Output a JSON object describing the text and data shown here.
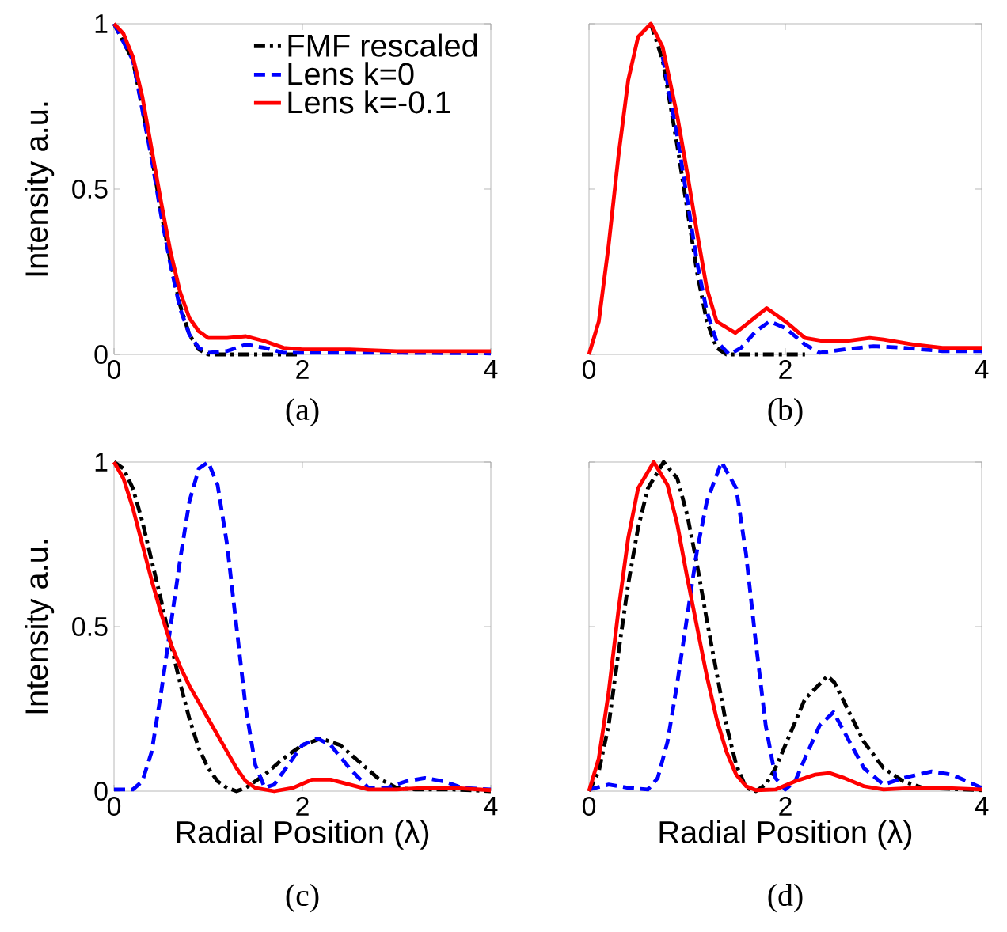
{
  "chart_data": [
    {
      "type": "line",
      "ylabel": "Intensity a.u.",
      "annotations": [
        "(a)"
      ],
      "xlim": [
        0,
        4
      ],
      "ylim": [
        0,
        1
      ],
      "xticks": [
        0,
        2,
        4
      ],
      "yticks": [
        0,
        0.5,
        1
      ],
      "legend": "top right",
      "series": [
        {
          "name": "FMF rescaled",
          "color": "#000000",
          "line_style": "dashdot",
          "x": [
            0,
            0.2,
            0.4,
            0.5,
            0.6,
            0.7,
            0.8,
            0.9,
            1.0,
            1.5,
            2.0
          ],
          "values": [
            1,
            0.89,
            0.6,
            0.43,
            0.28,
            0.15,
            0.06,
            0.015,
            0,
            0,
            0
          ]
        },
        {
          "name": "Lens k=0",
          "color": "#0000ff",
          "line_style": "dashed",
          "x": [
            0,
            0.2,
            0.4,
            0.5,
            0.6,
            0.7,
            0.8,
            0.9,
            1.0,
            1.2,
            1.4,
            1.6,
            1.8,
            2,
            3,
            4
          ],
          "values": [
            1,
            0.89,
            0.59,
            0.42,
            0.27,
            0.14,
            0.06,
            0.02,
            0.005,
            0.01,
            0.03,
            0.02,
            0.005,
            0.005,
            0.005,
            0.003
          ]
        },
        {
          "name": "Lens k=-0.1",
          "color": "#ff0000",
          "line_style": "solid",
          "x": [
            0,
            0.1,
            0.2,
            0.3,
            0.4,
            0.5,
            0.6,
            0.7,
            0.8,
            0.9,
            1.0,
            1.2,
            1.4,
            1.6,
            1.8,
            2.0,
            2.5,
            3,
            3.5,
            4
          ],
          "values": [
            1,
            0.97,
            0.9,
            0.78,
            0.62,
            0.46,
            0.31,
            0.19,
            0.11,
            0.07,
            0.05,
            0.05,
            0.055,
            0.04,
            0.02,
            0.015,
            0.015,
            0.01,
            0.01,
            0.01
          ]
        }
      ]
    },
    {
      "type": "line",
      "annotations": [
        "(b)"
      ],
      "xlim": [
        0,
        4
      ],
      "ylim": [
        0,
        1
      ],
      "xticks": [
        0,
        2,
        4
      ],
      "yticks": [
        0,
        0.5,
        1
      ],
      "tick_labels": "x",
      "series": [
        {
          "color": "#000000",
          "line_style": "dashdot",
          "x": [
            0.63,
            0.75,
            0.9,
            1.0,
            1.1,
            1.2,
            1.3,
            1.4,
            2.2
          ],
          "values": [
            1,
            0.89,
            0.63,
            0.44,
            0.25,
            0.1,
            0.02,
            0,
            0
          ]
        },
        {
          "color": "#0000ff",
          "line_style": "dashed",
          "x": [
            0.75,
            0.9,
            1.0,
            1.1,
            1.2,
            1.3,
            1.43,
            1.55,
            1.7,
            1.84,
            2.0,
            2.2,
            2.35,
            2.6,
            2.9,
            3.2,
            3.6,
            4
          ],
          "values": [
            0.9,
            0.66,
            0.47,
            0.28,
            0.13,
            0.04,
            0,
            0.02,
            0.07,
            0.1,
            0.08,
            0.03,
            0.005,
            0.015,
            0.025,
            0.02,
            0.01,
            0.01
          ]
        },
        {
          "color": "#ff0000",
          "line_style": "solid",
          "x": [
            0,
            0.1,
            0.2,
            0.3,
            0.4,
            0.5,
            0.63,
            0.75,
            0.9,
            1.0,
            1.1,
            1.2,
            1.3,
            1.49,
            1.6,
            1.81,
            2.0,
            2.2,
            2.4,
            2.6,
            2.86,
            3.0,
            3.3,
            3.6,
            4
          ],
          "values": [
            0,
            0.1,
            0.33,
            0.6,
            0.83,
            0.96,
            1,
            0.93,
            0.72,
            0.55,
            0.37,
            0.2,
            0.1,
            0.065,
            0.09,
            0.14,
            0.1,
            0.05,
            0.04,
            0.04,
            0.05,
            0.045,
            0.03,
            0.02,
            0.02
          ]
        }
      ]
    },
    {
      "type": "line",
      "xlabel": "Radial Position (λ)",
      "ylabel": "Intensity a.u.",
      "annotations": [
        "(c)"
      ],
      "xlim": [
        0,
        4
      ],
      "ylim": [
        0,
        1
      ],
      "xticks": [
        0,
        2,
        4
      ],
      "yticks": [
        0,
        0.5,
        1
      ],
      "series": [
        {
          "color": "#000000",
          "line_style": "dashdot",
          "x": [
            0,
            0.1,
            0.2,
            0.3,
            0.4,
            0.5,
            0.6,
            0.7,
            0.8,
            0.9,
            1.0,
            1.1,
            1.2,
            1.3,
            1.4,
            1.5,
            1.6,
            1.8,
            2.0,
            2.2,
            2.4,
            2.6,
            2.8,
            3.0,
            3.2,
            3.6,
            4
          ],
          "values": [
            1,
            0.98,
            0.92,
            0.82,
            0.7,
            0.58,
            0.45,
            0.33,
            0.22,
            0.13,
            0.07,
            0.03,
            0.01,
            0,
            0.01,
            0.03,
            0.05,
            0.1,
            0.14,
            0.16,
            0.14,
            0.09,
            0.04,
            0.01,
            0.005,
            0.005,
            0
          ]
        },
        {
          "color": "#0000ff",
          "line_style": "dashed",
          "x": [
            0,
            0.2,
            0.3,
            0.4,
            0.5,
            0.6,
            0.7,
            0.8,
            0.9,
            1.0,
            1.1,
            1.2,
            1.3,
            1.4,
            1.5,
            1.6,
            1.7,
            1.8,
            2.0,
            2.16,
            2.3,
            2.5,
            2.7,
            2.9,
            3.1,
            3.3,
            3.5,
            3.7,
            4
          ],
          "values": [
            0.005,
            0.005,
            0.03,
            0.12,
            0.3,
            0.5,
            0.7,
            0.88,
            0.98,
            1,
            0.93,
            0.75,
            0.5,
            0.25,
            0.08,
            0.01,
            0.02,
            0.06,
            0.14,
            0.16,
            0.14,
            0.07,
            0.01,
            0.01,
            0.03,
            0.04,
            0.03,
            0.01,
            0.005
          ]
        },
        {
          "color": "#ff0000",
          "line_style": "solid",
          "x": [
            0,
            0.1,
            0.2,
            0.3,
            0.4,
            0.5,
            0.6,
            0.7,
            0.8,
            0.9,
            1.0,
            1.1,
            1.2,
            1.3,
            1.4,
            1.5,
            1.7,
            1.9,
            2.1,
            2.3,
            2.5,
            2.7,
            3.0,
            3.3,
            3.6,
            4
          ],
          "values": [
            1,
            0.95,
            0.86,
            0.75,
            0.64,
            0.54,
            0.45,
            0.38,
            0.32,
            0.27,
            0.22,
            0.17,
            0.12,
            0.07,
            0.03,
            0.01,
            0,
            0.01,
            0.035,
            0.035,
            0.02,
            0.005,
            0.005,
            0.01,
            0.01,
            0.003
          ]
        }
      ]
    },
    {
      "type": "line",
      "xlabel": "Radial Position (λ)",
      "annotations": [
        "(d)"
      ],
      "xlim": [
        0,
        4
      ],
      "ylim": [
        0,
        1
      ],
      "xticks": [
        0,
        2,
        4
      ],
      "yticks": [
        0,
        0.5,
        1
      ],
      "tick_labels": "x",
      "series": [
        {
          "color": "#000000",
          "line_style": "dashdot",
          "x": [
            0,
            0.1,
            0.2,
            0.3,
            0.4,
            0.5,
            0.6,
            0.76,
            0.9,
            1.0,
            1.1,
            1.2,
            1.3,
            1.4,
            1.5,
            1.6,
            1.7,
            1.8,
            1.9,
            2.0,
            2.2,
            2.43,
            2.5,
            2.6,
            2.8,
            3.0,
            3.2,
            3.4,
            4
          ],
          "values": [
            0,
            0.06,
            0.2,
            0.42,
            0.63,
            0.8,
            0.92,
            1,
            0.95,
            0.84,
            0.69,
            0.52,
            0.36,
            0.2,
            0.08,
            0.01,
            0,
            0.02,
            0.07,
            0.14,
            0.28,
            0.35,
            0.33,
            0.27,
            0.15,
            0.07,
            0.03,
            0.01,
            0.003
          ]
        },
        {
          "color": "#0000ff",
          "line_style": "dashed",
          "x": [
            0,
            0.2,
            0.4,
            0.6,
            0.7,
            0.8,
            0.9,
            1.0,
            1.1,
            1.2,
            1.35,
            1.5,
            1.6,
            1.7,
            1.8,
            1.9,
            2.0,
            2.1,
            2.2,
            2.35,
            2.49,
            2.6,
            2.8,
            3.0,
            3.2,
            3.49,
            3.7,
            4
          ],
          "values": [
            0.005,
            0.02,
            0.01,
            0.005,
            0.04,
            0.15,
            0.33,
            0.53,
            0.73,
            0.88,
            1,
            0.92,
            0.72,
            0.45,
            0.2,
            0.04,
            0.005,
            0.03,
            0.1,
            0.2,
            0.24,
            0.18,
            0.07,
            0.02,
            0.04,
            0.06,
            0.05,
            0.01
          ]
        },
        {
          "color": "#ff0000",
          "line_style": "solid",
          "x": [
            0,
            0.1,
            0.2,
            0.3,
            0.4,
            0.5,
            0.66,
            0.8,
            0.9,
            1.0,
            1.1,
            1.2,
            1.3,
            1.4,
            1.5,
            1.6,
            1.7,
            1.9,
            2.1,
            2.3,
            2.45,
            2.6,
            2.8,
            3.0,
            3.3,
            3.6,
            4
          ],
          "values": [
            0,
            0.1,
            0.3,
            0.55,
            0.77,
            0.92,
            1,
            0.93,
            0.81,
            0.65,
            0.5,
            0.35,
            0.22,
            0.12,
            0.05,
            0.015,
            0.003,
            0.005,
            0.03,
            0.05,
            0.055,
            0.04,
            0.015,
            0.005,
            0.01,
            0.01,
            0.005
          ]
        }
      ]
    }
  ]
}
